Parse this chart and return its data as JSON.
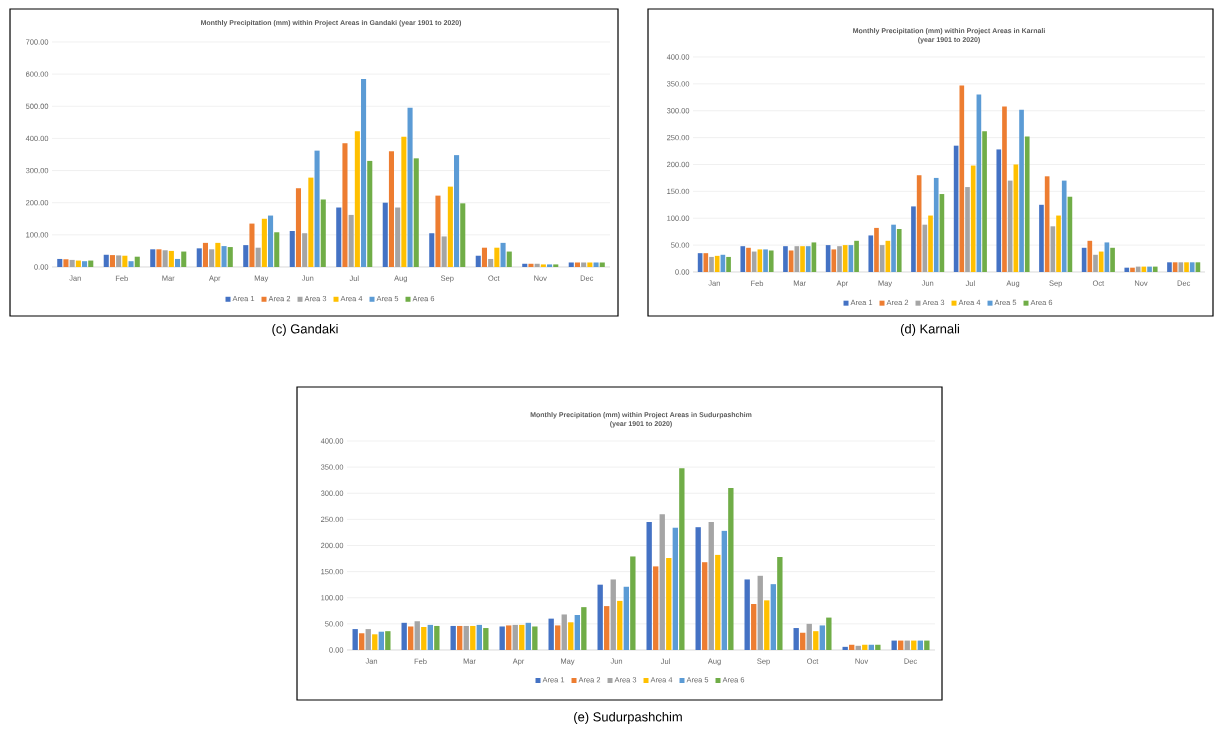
{
  "chart_data": [
    {
      "type": "bar",
      "title": "Monthly Precipitation (mm) within Project Areas in Gandaki (year 1901 to 2020)",
      "annotations": [
        "(c)  Gandaki"
      ],
      "categories": [
        "Jan",
        "Feb",
        "Mar",
        "Apr",
        "May",
        "Jun",
        "Jul",
        "Aug",
        "Sep",
        "Oct",
        "Nov",
        "Dec"
      ],
      "series": [
        {
          "name": "Area 1",
          "color": "#4472c4",
          "values": [
            25,
            38,
            55,
            58,
            68,
            112,
            185,
            200,
            105,
            35,
            10,
            14
          ]
        },
        {
          "name": "Area 2",
          "color": "#ed7d31",
          "values": [
            24,
            37,
            55,
            75,
            135,
            245,
            385,
            360,
            222,
            60,
            10,
            14
          ]
        },
        {
          "name": "Area 3",
          "color": "#a5a5a5",
          "values": [
            22,
            36,
            52,
            55,
            60,
            105,
            162,
            185,
            95,
            25,
            10,
            14
          ]
        },
        {
          "name": "Area 4",
          "color": "#ffc000",
          "values": [
            20,
            35,
            50,
            75,
            150,
            278,
            422,
            405,
            250,
            60,
            8,
            14
          ]
        },
        {
          "name": "Area 5",
          "color": "#5b9bd5",
          "values": [
            18,
            18,
            25,
            65,
            160,
            362,
            585,
            495,
            348,
            75,
            8,
            14
          ]
        },
        {
          "name": "Area 6",
          "color": "#70ad47",
          "values": [
            20,
            32,
            48,
            62,
            108,
            210,
            330,
            338,
            198,
            48,
            8,
            14
          ]
        }
      ],
      "ylim": [
        0,
        700
      ],
      "yticks": [
        {
          "value": 0,
          "label": "0.00"
        },
        {
          "value": 100,
          "label": "100.00"
        },
        {
          "value": 200,
          "label": "200.00"
        },
        {
          "value": 300,
          "label": "300.00"
        },
        {
          "value": 400,
          "label": "400.00"
        },
        {
          "value": 500,
          "label": "500.00"
        },
        {
          "value": 600,
          "label": "600.00"
        },
        {
          "value": 700,
          "label": "700.00"
        }
      ],
      "grid": "y",
      "legend": "bottom"
    },
    {
      "type": "bar",
      "title": "Monthly Precipitation (mm) within Project Areas in Karnali",
      "subtitle": "(year 1901 to 2020)",
      "annotations": [
        "(d)  Karnali"
      ],
      "categories": [
        "Jan",
        "Feb",
        "Mar",
        "Apr",
        "May",
        "Jun",
        "Jul",
        "Aug",
        "Sep",
        "Oct",
        "Nov",
        "Dec"
      ],
      "series": [
        {
          "name": "Area 1",
          "color": "#4472c4",
          "values": [
            35,
            48,
            48,
            50,
            68,
            122,
            235,
            228,
            125,
            45,
            8,
            18
          ]
        },
        {
          "name": "Area 2",
          "color": "#ed7d31",
          "values": [
            35,
            45,
            40,
            42,
            82,
            180,
            347,
            308,
            178,
            58,
            8,
            18
          ]
        },
        {
          "name": "Area 3",
          "color": "#a5a5a5",
          "values": [
            28,
            38,
            48,
            48,
            50,
            88,
            158,
            170,
            85,
            32,
            10,
            18
          ]
        },
        {
          "name": "Area 4",
          "color": "#ffc000",
          "values": [
            30,
            42,
            48,
            50,
            58,
            105,
            198,
            200,
            105,
            38,
            10,
            18
          ]
        },
        {
          "name": "Area 5",
          "color": "#5b9bd5",
          "values": [
            32,
            42,
            48,
            50,
            88,
            175,
            330,
            302,
            170,
            55,
            10,
            18
          ]
        },
        {
          "name": "Area 6",
          "color": "#70ad47",
          "values": [
            28,
            40,
            55,
            58,
            80,
            145,
            262,
            252,
            140,
            45,
            10,
            18
          ]
        }
      ],
      "ylim": [
        0,
        400
      ],
      "yticks": [
        {
          "value": 0,
          "label": "0.00"
        },
        {
          "value": 50,
          "label": "50.00"
        },
        {
          "value": 100,
          "label": "100.00"
        },
        {
          "value": 150,
          "label": "150.00"
        },
        {
          "value": 200,
          "label": "200.00"
        },
        {
          "value": 250,
          "label": "250.00"
        },
        {
          "value": 300,
          "label": "300.00"
        },
        {
          "value": 350,
          "label": "350.00"
        },
        {
          "value": 400,
          "label": "400.00"
        }
      ],
      "grid": "y",
      "legend": "bottom"
    },
    {
      "type": "bar",
      "title": "Monthly Precipitation (mm) within Project Areas in Sudurpashchim",
      "subtitle": "(year 1901 to 2020)",
      "annotations": [
        "(e)  Sudurpashchim"
      ],
      "categories": [
        "Jan",
        "Feb",
        "Mar",
        "Apr",
        "May",
        "Jun",
        "Jul",
        "Aug",
        "Sep",
        "Oct",
        "Nov",
        "Dec"
      ],
      "series": [
        {
          "name": "Area 1",
          "color": "#4472c4",
          "values": [
            40,
            52,
            46,
            45,
            60,
            125,
            245,
            235,
            135,
            42,
            6,
            18
          ]
        },
        {
          "name": "Area 2",
          "color": "#ed7d31",
          "values": [
            32,
            45,
            46,
            47,
            47,
            84,
            160,
            168,
            88,
            33,
            10,
            18
          ]
        },
        {
          "name": "Area 3",
          "color": "#a5a5a5",
          "values": [
            40,
            55,
            46,
            48,
            68,
            135,
            260,
            245,
            142,
            50,
            8,
            18
          ]
        },
        {
          "name": "Area 4",
          "color": "#ffc000",
          "values": [
            30,
            44,
            46,
            48,
            53,
            94,
            176,
            182,
            95,
            36,
            10,
            18
          ]
        },
        {
          "name": "Area 5",
          "color": "#5b9bd5",
          "values": [
            35,
            48,
            48,
            52,
            67,
            121,
            234,
            228,
            126,
            47,
            10,
            18
          ]
        },
        {
          "name": "Area 6",
          "color": "#70ad47",
          "values": [
            36,
            46,
            42,
            45,
            82,
            179,
            348,
            310,
            178,
            62,
            10,
            18
          ]
        }
      ],
      "ylim": [
        0,
        400
      ],
      "yticks": [
        {
          "value": 0,
          "label": "0.00"
        },
        {
          "value": 50,
          "label": "50.00"
        },
        {
          "value": 100,
          "label": "100.00"
        },
        {
          "value": 150,
          "label": "150.00"
        },
        {
          "value": 200,
          "label": "200.00"
        },
        {
          "value": 250,
          "label": "250.00"
        },
        {
          "value": 300,
          "label": "300.00"
        },
        {
          "value": 350,
          "label": "350.00"
        },
        {
          "value": 400,
          "label": "400.00"
        }
      ],
      "grid": "y",
      "legend": "bottom"
    }
  ]
}
